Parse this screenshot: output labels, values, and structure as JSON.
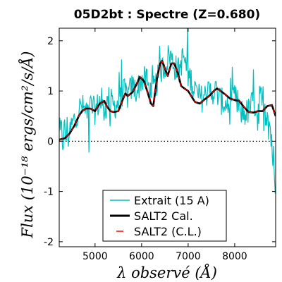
{
  "chart_data": {
    "type": "line",
    "title": "05D2bt : Spectre (Z=0.680)",
    "xlabel": "λ observé (Å)",
    "ylabel": "Flux (10⁻¹⁸ ergs/cm²/s/Å)",
    "xlim": [
      4230,
      8880
    ],
    "ylim": [
      -2.1,
      2.25
    ],
    "xticks": [
      5000,
      6000,
      7000,
      8000
    ],
    "xtick_labels": [
      "5000",
      "6000",
      "7000",
      "8000"
    ],
    "yticks": [
      -2,
      -1,
      0,
      1,
      2
    ],
    "ytick_labels": [
      "-2",
      "-1",
      "0",
      "1",
      "2"
    ],
    "zero_line": true,
    "grid": false,
    "legend_position": "bottom-center",
    "series": [
      {
        "name": "Extrait (15 A)",
        "color": "#00bfbf",
        "style": "noisy",
        "x": [
          4230,
          4300,
          4400,
          4500,
          4600,
          4700,
          4800,
          4900,
          5000,
          5100,
          5200,
          5300,
          5400,
          5500,
          5600,
          5700,
          5800,
          5900,
          6000,
          6100,
          6200,
          6300,
          6400,
          6500,
          6600,
          6700,
          6800,
          6900,
          7000,
          7100,
          7200,
          7300,
          7400,
          7500,
          7600,
          7700,
          7800,
          7900,
          8000,
          8100,
          8200,
          8300,
          8400,
          8500,
          8600,
          8700,
          8800,
          8880
        ],
        "values": [
          0.05,
          0.1,
          0.15,
          0.3,
          0.55,
          0.7,
          0.6,
          0.7,
          0.6,
          0.8,
          0.6,
          0.85,
          0.7,
          0.75,
          1.0,
          0.9,
          1.1,
          1.0,
          1.25,
          1.2,
          0.95,
          1.1,
          1.4,
          1.5,
          1.75,
          1.5,
          1.4,
          1.7,
          1.3,
          1.2,
          0.9,
          0.85,
          0.95,
          1.0,
          1.0,
          0.8,
          0.75,
          0.6,
          0.9,
          0.6,
          0.55,
          0.6,
          0.8,
          0.6,
          0.7,
          0.7,
          0.0,
          -1.2
        ]
      },
      {
        "name": "SALT2 Cal.",
        "color": "#000000",
        "x": [
          4230,
          4350,
          4450,
          4550,
          4650,
          4720,
          4800,
          4900,
          5000,
          5100,
          5200,
          5250,
          5330,
          5400,
          5500,
          5560,
          5650,
          5700,
          5800,
          5900,
          5960,
          6050,
          6120,
          6200,
          6250,
          6330,
          6400,
          6440,
          6520,
          6560,
          6640,
          6700,
          6780,
          6850,
          6920,
          7000,
          7100,
          7150,
          7250,
          7350,
          7450,
          7550,
          7620,
          7700,
          7800,
          7900,
          8000,
          8100,
          8200,
          8300,
          8400,
          8500,
          8600,
          8700,
          8800,
          8880
        ],
        "values": [
          0.03,
          0.06,
          0.15,
          0.3,
          0.5,
          0.6,
          0.65,
          0.65,
          0.6,
          0.75,
          0.8,
          0.7,
          0.6,
          0.58,
          0.6,
          0.75,
          0.95,
          0.9,
          0.97,
          1.15,
          1.28,
          1.2,
          1.0,
          0.75,
          0.7,
          1.25,
          1.55,
          1.6,
          1.4,
          1.3,
          1.55,
          1.55,
          1.35,
          1.1,
          1.05,
          1.0,
          0.85,
          0.78,
          0.75,
          0.83,
          0.9,
          1.0,
          1.05,
          1.0,
          0.93,
          0.85,
          0.82,
          0.8,
          0.68,
          0.58,
          0.57,
          0.6,
          0.6,
          0.7,
          0.72,
          0.5
        ]
      },
      {
        "name": "SALT2 (C.L.)",
        "color": "#ff0000",
        "style": "dashed",
        "same_as": "SALT2 Cal."
      }
    ]
  }
}
